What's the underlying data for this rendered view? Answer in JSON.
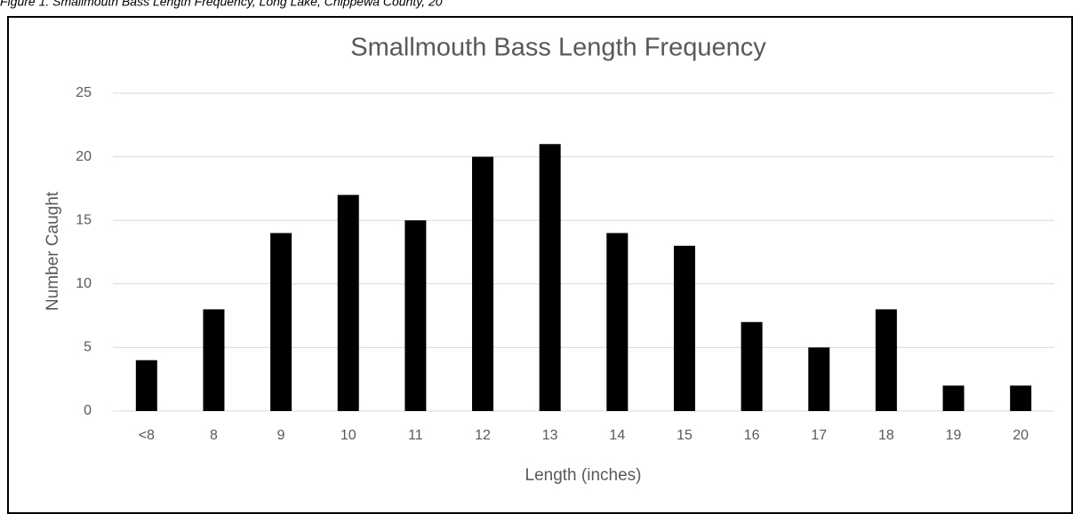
{
  "caption": "Figure 1. Smallmouth Bass Length Frequency, Long Lake, Chippewa County, 20",
  "chart_data": {
    "type": "bar",
    "title": "Smallmouth Bass Length Frequency",
    "x_label": "Length (inches)",
    "y_label": "Number Caught",
    "categories": [
      "<8",
      "8",
      "9",
      "10",
      "11",
      "12",
      "13",
      "14",
      "15",
      "16",
      "17",
      "18",
      "19",
      "20"
    ],
    "values": [
      4,
      8,
      14,
      17,
      15,
      20,
      21,
      14,
      13,
      7,
      5,
      8,
      2,
      2
    ],
    "color": "#000000",
    "ylim": [
      0,
      25
    ],
    "yticks": [
      0,
      5,
      10,
      15,
      20,
      25
    ],
    "grid": true
  }
}
